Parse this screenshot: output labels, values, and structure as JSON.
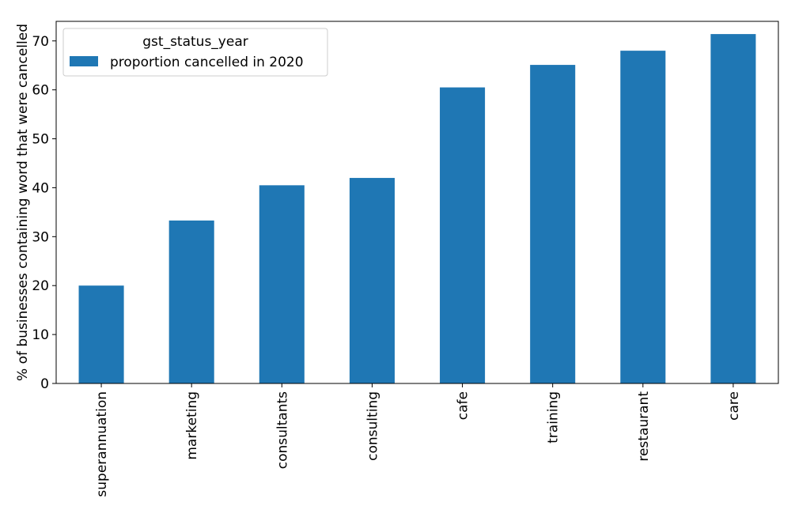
{
  "chart_data": {
    "type": "bar",
    "categories": [
      "superannuation",
      "marketing",
      "consultants",
      "consulting",
      "cafe",
      "training",
      "restaurant",
      "care"
    ],
    "series": [
      {
        "name": "proportion cancelled in 2020",
        "values": [
          20.0,
          33.3,
          40.5,
          42.0,
          60.5,
          65.1,
          68.0,
          71.4
        ],
        "color": "#1f77b4"
      }
    ],
    "xlabel": "",
    "ylabel": "% of businesses containing word that were cancelled",
    "ylim": [
      0,
      74
    ],
    "yticks": [
      0,
      10,
      20,
      30,
      40,
      50,
      60,
      70
    ],
    "grid": false,
    "legend": {
      "title": "gst_status_year",
      "position": "top-left"
    }
  }
}
